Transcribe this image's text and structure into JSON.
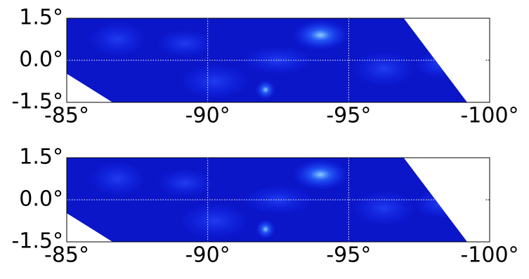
{
  "chart_data": [
    {
      "type": "heatmap",
      "color": "#0b16c9",
      "xlim": [
        -85,
        -100
      ],
      "ylim": [
        -1.5,
        1.5
      ],
      "xticks": [
        {
          "value": -85,
          "label": "-85°"
        },
        {
          "value": -90,
          "label": "-90°"
        },
        {
          "value": -95,
          "label": "-95°"
        },
        {
          "value": -100,
          "label": "-100°"
        }
      ],
      "yticks": [
        {
          "value": -1.5,
          "label": "-1.5°"
        },
        {
          "value": 0,
          "label": "0.0°"
        },
        {
          "value": 1.5,
          "label": "1.5°"
        }
      ],
      "grid": true
    },
    {
      "type": "heatmap",
      "color": "#0b16c9",
      "xlim": [
        -85,
        -100
      ],
      "ylim": [
        -1.5,
        1.5
      ],
      "xticks": [
        {
          "value": -85,
          "label": "-85°"
        },
        {
          "value": -90,
          "label": "-90°"
        },
        {
          "value": -95,
          "label": "-95°"
        },
        {
          "value": -100,
          "label": "-100°"
        }
      ],
      "yticks": [
        {
          "value": -1.5,
          "label": "-1.5°"
        },
        {
          "value": 0,
          "label": "0.0°"
        },
        {
          "value": 1.5,
          "label": "1.5°"
        }
      ],
      "grid": true
    }
  ]
}
